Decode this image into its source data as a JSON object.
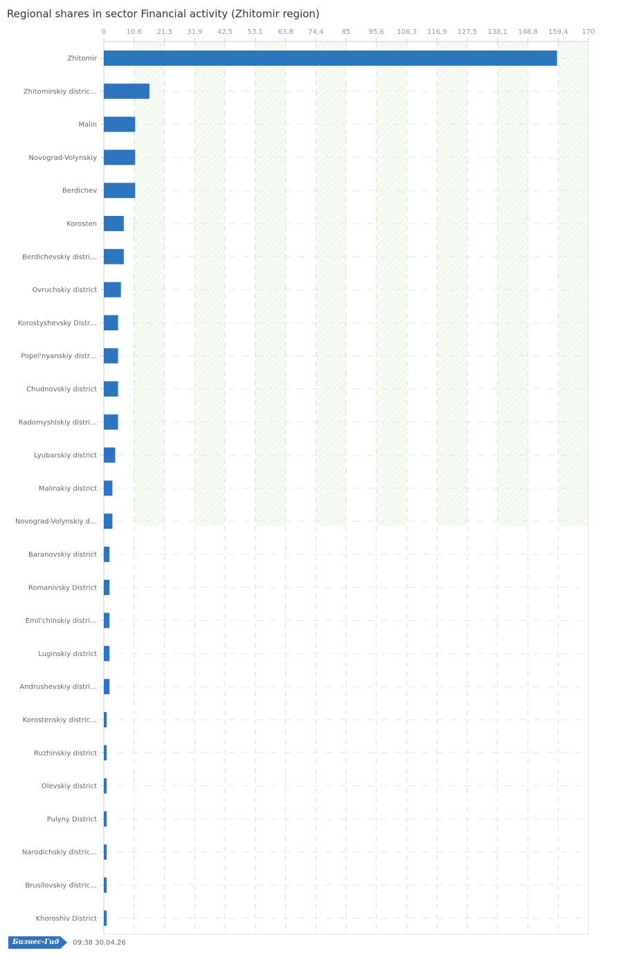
{
  "chart_data": {
    "type": "bar",
    "orientation": "horizontal",
    "title": "Regional shares in sector Financial activity (Zhitomir region)",
    "xlim": [
      0,
      170
    ],
    "x_ticks": [
      "0",
      "10,6",
      "21,3",
      "31,9",
      "42,5",
      "53,1",
      "63,8",
      "74,4",
      "85",
      "95,6",
      "106,3",
      "116,9",
      "127,5",
      "138,1",
      "148,8",
      "159,4",
      "170"
    ],
    "x_tick_values": [
      0,
      10.6,
      21.3,
      31.9,
      42.5,
      53.1,
      63.8,
      74.4,
      85,
      95.6,
      106.3,
      116.9,
      127.5,
      138.1,
      148.8,
      159.4,
      170
    ],
    "categories": [
      "Zhitomir",
      "Zhitomirskiy distric…",
      "Malin",
      "Novograd-Volynskiy",
      "Berdichev",
      "Korosten",
      "Berdichevskiy distri…",
      "Ovruchskiy district",
      "Korostyshevsky Distr…",
      "Popel'nyanskiy distr…",
      "Chudnovskiy district",
      "Radomyshlskiy distri…",
      "Lyubarskiy district",
      "Malinskiy district",
      "Novograd-Volynskiy d…",
      "Baranovskiy district",
      "Romanivsky District",
      "Emil'chinskiy distri…",
      "Luginskiy district",
      "Andrushevskiy distri…",
      "Korostenskiy distric…",
      "Ruzhinskiy district",
      "Olevskiy district",
      "Pulyny District",
      "Narodichskiy distric…",
      "Brusilovskiy distric…",
      "Khoroshiv District"
    ],
    "values": [
      159,
      16,
      11,
      11,
      11,
      7,
      7,
      6,
      5,
      5,
      5,
      5,
      4,
      3,
      3,
      2,
      2,
      2,
      2,
      2,
      1,
      1,
      1,
      1,
      1,
      1,
      1
    ],
    "bar_color": "#2e75c0",
    "grid": true
  },
  "footer": {
    "logo_text": "Бизнес-Гид",
    "timestamp": "09:38 30.04.26"
  }
}
